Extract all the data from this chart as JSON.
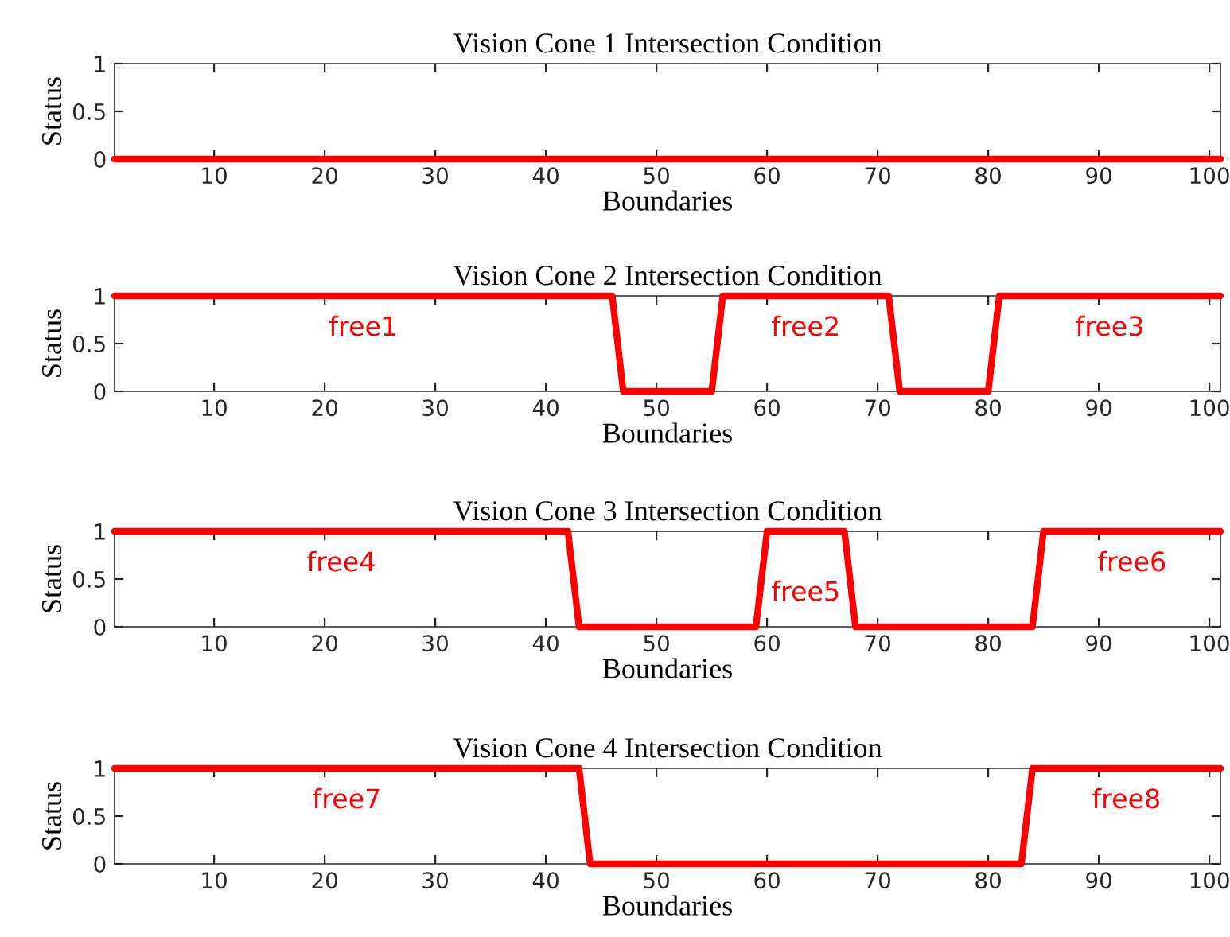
{
  "chart_data": [
    {
      "type": "line",
      "title": "Vision Cone 1 Intersection Condition",
      "xlabel": "Boundaries",
      "ylabel": "Status",
      "xlim": [
        1,
        101
      ],
      "ylim": [
        0,
        1
      ],
      "xticks": [
        10,
        20,
        30,
        40,
        50,
        60,
        70,
        80,
        90,
        100
      ],
      "yticks": [
        0,
        0.5,
        1
      ],
      "grid": false,
      "legend": false,
      "series": [
        {
          "color": "#ff0000",
          "x": [
            1,
            101
          ],
          "values": [
            0,
            0
          ]
        }
      ]
    },
    {
      "type": "line",
      "title": "Vision Cone 2 Intersection Condition",
      "xlabel": "Boundaries",
      "ylabel": "Status",
      "xlim": [
        1,
        101
      ],
      "ylim": [
        0,
        1
      ],
      "xticks": [
        10,
        20,
        30,
        40,
        50,
        60,
        70,
        80,
        90,
        100
      ],
      "yticks": [
        0,
        0.5,
        1
      ],
      "grid": false,
      "legend": false,
      "series": [
        {
          "color": "#ff0000",
          "x": [
            1,
            46,
            47,
            55,
            56,
            71,
            72,
            80,
            81,
            101
          ],
          "values": [
            1,
            1,
            0,
            0,
            1,
            1,
            0,
            0,
            1,
            1
          ]
        }
      ],
      "annotations": [
        "free1",
        "free2",
        "free3"
      ]
    },
    {
      "type": "line",
      "title": "Vision Cone 3 Intersection Condition",
      "xlabel": "Boundaries",
      "ylabel": "Status",
      "xlim": [
        1,
        101
      ],
      "ylim": [
        0,
        1
      ],
      "xticks": [
        10,
        20,
        30,
        40,
        50,
        60,
        70,
        80,
        90,
        100
      ],
      "yticks": [
        0,
        0.5,
        1
      ],
      "grid": false,
      "legend": false,
      "series": [
        {
          "color": "#ff0000",
          "x": [
            1,
            42,
            43,
            59,
            60,
            67,
            68,
            84,
            85,
            101
          ],
          "values": [
            1,
            1,
            0,
            0,
            1,
            1,
            0,
            0,
            1,
            1
          ]
        }
      ],
      "annotations": [
        "free4",
        "free5",
        "free6"
      ]
    },
    {
      "type": "line",
      "title": "Vision Cone 4 Intersection Condition",
      "xlabel": "Boundaries",
      "ylabel": "Status",
      "xlim": [
        1,
        101
      ],
      "ylim": [
        0,
        1
      ],
      "xticks": [
        10,
        20,
        30,
        40,
        50,
        60,
        70,
        80,
        90,
        100
      ],
      "yticks": [
        0,
        0.5,
        1
      ],
      "grid": false,
      "legend": false,
      "series": [
        {
          "color": "#ff0000",
          "x": [
            1,
            43,
            44,
            83,
            84,
            101
          ],
          "values": [
            1,
            1,
            0,
            0,
            1,
            1
          ]
        }
      ],
      "annotations": [
        "free7",
        "free8"
      ]
    }
  ]
}
